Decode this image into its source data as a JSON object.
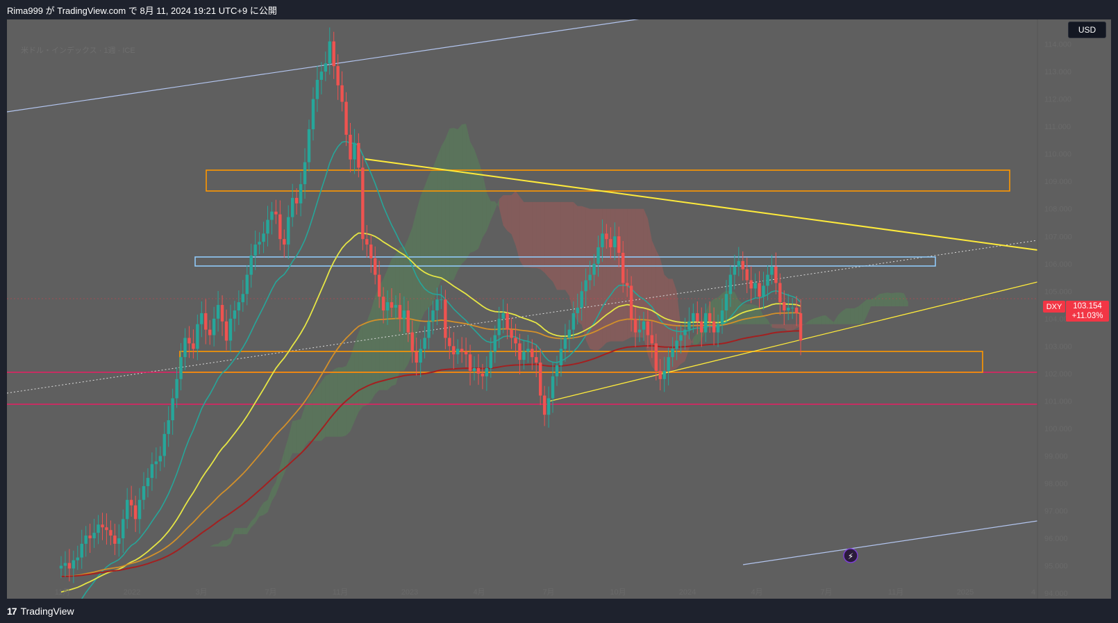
{
  "header": {
    "publish_text": "Rima999 が TradingView.com で 8月 11, 2024 19:21 UTC+9 に公開"
  },
  "chart": {
    "legend": "米ドル・インデックス · 1週 · ICE",
    "currency": "USD",
    "symbol": "DXY",
    "last_price": "103.154",
    "change_pct": "+11.03%",
    "y_ticks": [
      "114.000",
      "113.000",
      "112.000",
      "111.000",
      "110.000",
      "109.000",
      "108.000",
      "107.000",
      "106.000",
      "105.000",
      "104.000",
      "103.000",
      "102.000",
      "101.000",
      "100.000",
      "99.000",
      "98.000",
      "97.000",
      "96.000",
      "95.000",
      "94.000"
    ],
    "x_ticks": [
      "11月",
      "2022",
      "3月",
      "7月",
      "11月",
      "2023",
      "4月",
      "7月",
      "10月",
      "2024",
      "4月",
      "7月",
      "11月",
      "2025",
      "4"
    ],
    "colors": {
      "background": "#5f5f5f",
      "up": "#26a69a",
      "down": "#ef5350",
      "trendline": "#ffeb3b",
      "zone_orange": "#ff9800",
      "zone_blue": "#90caf9",
      "horizontal_pink": "#e91e63",
      "channel_light": "#b3c5ef"
    }
  },
  "chart_data": {
    "type": "candlestick",
    "title": "",
    "xlabel": "",
    "ylabel": "",
    "ylim": [
      93.8,
      114.9
    ],
    "series": [
      {
        "values": [
          95.0,
          95.1,
          94.9,
          95.2,
          95.3,
          95.8,
          96.1,
          96.0,
          96.2,
          96.5,
          96.4,
          96.3,
          96.1,
          95.8,
          96.0,
          96.7,
          97.4,
          97.2,
          96.7,
          97.4,
          97.9,
          98.2,
          98.7,
          98.8,
          99.0,
          99.8,
          100.3,
          101.1,
          101.8,
          102.6,
          103.3,
          103.1,
          102.9,
          103.8,
          104.2,
          103.6,
          103.4,
          104.0,
          104.5,
          103.9,
          103.2,
          104.0,
          104.3,
          104.6,
          104.9,
          105.6,
          106.3,
          106.7,
          106.8,
          107.1,
          107.6,
          107.9,
          107.8,
          106.9,
          106.7,
          107.7,
          108.4,
          108.2,
          108.9,
          109.7,
          110.9,
          112.0,
          112.7,
          113.0,
          113.3,
          114.1,
          113.2,
          112.5,
          111.9,
          110.7,
          109.8,
          110.4,
          109.5,
          106.9,
          106.7,
          106.2,
          105.6,
          104.8,
          104.3,
          104.6,
          104.4,
          104.5,
          104.0,
          104.3,
          103.5,
          102.8,
          102.4,
          102.9,
          103.3,
          103.9,
          104.3,
          104.7,
          104.7,
          103.3,
          103.0,
          102.7,
          102.9,
          102.8,
          102.7,
          102.1,
          102.2,
          102.0,
          101.9,
          102.2,
          102.8,
          103.4,
          104.0,
          104.2,
          103.6,
          103.3,
          103.1,
          102.5,
          102.8,
          102.9,
          102.6,
          102.4,
          101.2,
          100.5,
          101.1,
          101.9,
          102.3,
          102.9,
          103.3,
          103.6,
          104.2,
          104.4,
          105.0,
          105.4,
          105.6,
          106.0,
          106.6,
          107.1,
          106.9,
          106.6,
          107.0,
          106.4,
          105.3,
          105.2,
          104.0,
          103.5,
          103.6,
          103.9,
          103.4,
          103.1,
          102.1,
          101.8,
          102.1,
          102.6,
          102.9,
          103.2,
          103.4,
          103.6,
          103.9,
          104.2,
          103.9,
          103.5,
          104.2,
          103.9,
          103.5,
          103.8,
          104.3,
          104.9,
          105.6,
          105.9,
          106.1,
          105.8,
          105.4,
          105.1,
          105.3,
          104.8,
          105.2,
          105.6,
          105.9,
          105.3,
          104.6,
          104.3,
          104.4,
          104.4,
          104.2,
          103.2
        ]
      }
    ]
  },
  "footer": {
    "brand": "TradingView"
  }
}
